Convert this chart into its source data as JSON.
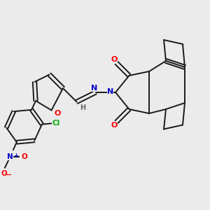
{
  "bg_color": "#ebebeb",
  "bond_color": "#1a1a1a",
  "atom_colors": {
    "O": "#ff0000",
    "N": "#0000cc",
    "Cl": "#00aa00",
    "H": "#666666"
  },
  "lw": 1.4
}
